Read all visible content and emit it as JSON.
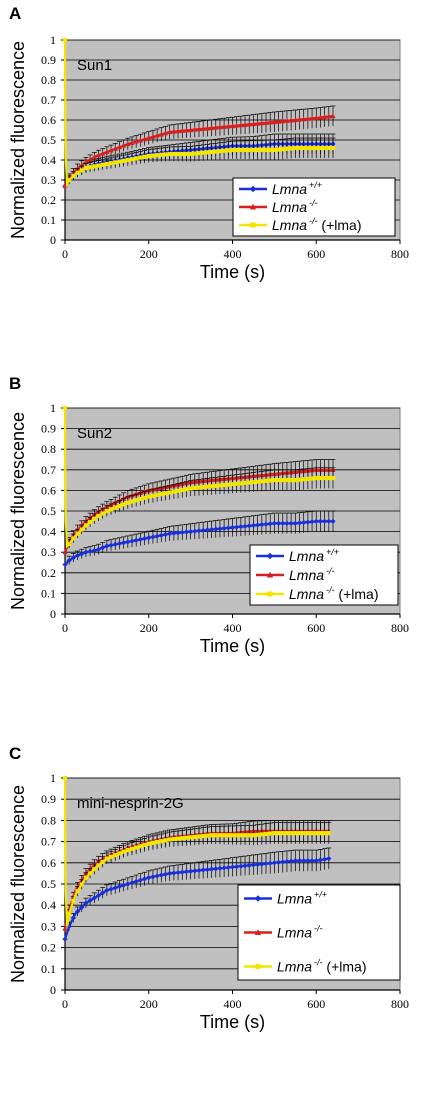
{
  "chart_data": [
    {
      "type": "line",
      "panel_letter": "A",
      "title": "Sun1",
      "xlabel": "Time (s)",
      "ylabel": "Normalized fluorescence",
      "xlim": [
        0,
        800
      ],
      "ylim": [
        0,
        1
      ],
      "x_ticks": [
        "0",
        "200",
        "400",
        "600",
        "800"
      ],
      "y_ticks": [
        "0",
        "0.1",
        "0.2",
        "0.3",
        "0.4",
        "0.5",
        "0.6",
        "0.7",
        "0.8",
        "0.9",
        "1"
      ],
      "grid": true,
      "error_bars": true,
      "legend_position": "bottom-right",
      "series": [
        {
          "name": "Lmna +/+",
          "gene": "Lmna",
          "superscript": "+/+",
          "suffix": "",
          "color": "#1a2fd6",
          "marker": "diamond",
          "x": [
            0,
            10,
            25,
            50,
            75,
            100,
            150,
            200,
            250,
            300,
            350,
            400,
            450,
            500,
            550,
            600,
            640
          ],
          "y": [
            0.27,
            0.3,
            0.33,
            0.36,
            0.38,
            0.39,
            0.41,
            0.43,
            0.44,
            0.45,
            0.46,
            0.47,
            0.47,
            0.48,
            0.48,
            0.48,
            0.48
          ]
        },
        {
          "name": "Lmna -/-",
          "gene": "Lmna",
          "superscript": "-/-",
          "suffix": "",
          "color": "#d42020",
          "marker": "triangle",
          "x": [
            0,
            10,
            25,
            50,
            75,
            100,
            150,
            200,
            250,
            300,
            350,
            400,
            450,
            500,
            550,
            600,
            640
          ],
          "y": [
            0.27,
            0.31,
            0.35,
            0.39,
            0.42,
            0.44,
            0.48,
            0.51,
            0.54,
            0.55,
            0.56,
            0.57,
            0.58,
            0.59,
            0.6,
            0.61,
            0.62
          ]
        },
        {
          "name": "Lmna -/- (+lma)",
          "gene": "Lmna",
          "superscript": "-/-",
          "suffix": " (+lma)",
          "color": "#f2e600",
          "marker": "square",
          "x": [
            0,
            1,
            2,
            5,
            10,
            25,
            50,
            75,
            100,
            150,
            200,
            250,
            300,
            350,
            400,
            450,
            500,
            550,
            600,
            640
          ],
          "y": [
            1.0,
            0.6,
            0.4,
            0.28,
            0.3,
            0.33,
            0.36,
            0.37,
            0.38,
            0.4,
            0.42,
            0.43,
            0.43,
            0.44,
            0.45,
            0.45,
            0.45,
            0.46,
            0.46,
            0.46
          ]
        }
      ]
    },
    {
      "type": "line",
      "panel_letter": "B",
      "title": "Sun2",
      "xlabel": "Time (s)",
      "ylabel": "Normalized fluorescence",
      "xlim": [
        0,
        800
      ],
      "ylim": [
        0,
        1
      ],
      "x_ticks": [
        "0",
        "200",
        "400",
        "600",
        "800"
      ],
      "y_ticks": [
        "0",
        "0.1",
        "0.2",
        "0.3",
        "0.4",
        "0.5",
        "0.6",
        "0.7",
        "0.8",
        "0.9",
        "1"
      ],
      "grid": true,
      "error_bars": true,
      "legend_position": "bottom-right",
      "series": [
        {
          "name": "Lmna +/+",
          "gene": "Lmna",
          "superscript": "+/+",
          "suffix": "",
          "color": "#1a2fd6",
          "marker": "diamond",
          "x": [
            0,
            10,
            25,
            50,
            75,
            100,
            150,
            200,
            250,
            300,
            350,
            400,
            450,
            500,
            550,
            600,
            640
          ],
          "y": [
            0.24,
            0.26,
            0.28,
            0.3,
            0.31,
            0.33,
            0.35,
            0.37,
            0.39,
            0.4,
            0.41,
            0.42,
            0.43,
            0.44,
            0.44,
            0.45,
            0.45
          ]
        },
        {
          "name": "Lmna -/-",
          "gene": "Lmna",
          "superscript": "-/-",
          "suffix": "",
          "color": "#d42020",
          "marker": "triangle",
          "x": [
            0,
            10,
            25,
            50,
            75,
            100,
            150,
            200,
            250,
            300,
            350,
            400,
            450,
            500,
            550,
            600,
            640
          ],
          "y": [
            0.3,
            0.35,
            0.4,
            0.45,
            0.49,
            0.52,
            0.57,
            0.6,
            0.62,
            0.64,
            0.65,
            0.66,
            0.67,
            0.68,
            0.69,
            0.7,
            0.7
          ]
        },
        {
          "name": "Lmna -/- (+lma)",
          "gene": "Lmna",
          "superscript": "-/-",
          "suffix": " (+lma)",
          "color": "#f2e600",
          "marker": "square",
          "x": [
            0,
            1,
            2,
            5,
            10,
            25,
            50,
            75,
            100,
            150,
            200,
            250,
            300,
            350,
            400,
            450,
            500,
            550,
            600,
            640
          ],
          "y": [
            1.0,
            0.6,
            0.45,
            0.33,
            0.34,
            0.38,
            0.43,
            0.47,
            0.5,
            0.54,
            0.57,
            0.59,
            0.61,
            0.62,
            0.63,
            0.64,
            0.65,
            0.65,
            0.66,
            0.66
          ]
        }
      ]
    },
    {
      "type": "line",
      "panel_letter": "C",
      "title": "mini-nesprin-2G",
      "xlabel": "Time (s)",
      "ylabel": "Normalized fluorescence",
      "xlim": [
        0,
        800
      ],
      "ylim": [
        0,
        1
      ],
      "x_ticks": [
        "0",
        "200",
        "400",
        "600",
        "800"
      ],
      "y_ticks": [
        "0",
        "0.1",
        "0.2",
        "0.3",
        "0.4",
        "0.5",
        "0.6",
        "0.7",
        "0.8",
        "0.9",
        "1"
      ],
      "grid": true,
      "error_bars": true,
      "legend_position": "bottom-right",
      "series": [
        {
          "name": "Lmna +/+",
          "gene": "Lmna",
          "superscript": "+/+",
          "suffix": "",
          "color": "#1a2fd6",
          "marker": "diamond",
          "x": [
            0,
            10,
            25,
            50,
            75,
            100,
            150,
            200,
            250,
            300,
            350,
            400,
            450,
            500,
            550,
            600,
            630
          ],
          "y": [
            0.24,
            0.3,
            0.36,
            0.41,
            0.44,
            0.47,
            0.5,
            0.53,
            0.55,
            0.56,
            0.57,
            0.58,
            0.59,
            0.6,
            0.61,
            0.61,
            0.62
          ]
        },
        {
          "name": "Lmna -/-",
          "gene": "Lmna",
          "superscript": "-/-",
          "suffix": "",
          "color": "#d42020",
          "marker": "triangle",
          "x": [
            0,
            10,
            25,
            50,
            75,
            100,
            150,
            200,
            250,
            300,
            350,
            400,
            450,
            500,
            550,
            600,
            630
          ],
          "y": [
            0.29,
            0.38,
            0.47,
            0.55,
            0.6,
            0.63,
            0.67,
            0.7,
            0.72,
            0.73,
            0.74,
            0.74,
            0.75,
            0.75,
            0.75,
            0.75,
            0.75
          ]
        },
        {
          "name": "Lmna -/- (+lma)",
          "gene": "Lmna",
          "superscript": "-/-",
          "suffix": " (+lma)",
          "color": "#f2e600",
          "marker": "square",
          "x": [
            0,
            1,
            2,
            5,
            10,
            25,
            50,
            75,
            100,
            150,
            200,
            250,
            300,
            350,
            400,
            450,
            500,
            550,
            600,
            630
          ],
          "y": [
            1.0,
            0.6,
            0.45,
            0.3,
            0.36,
            0.45,
            0.53,
            0.58,
            0.62,
            0.66,
            0.69,
            0.71,
            0.72,
            0.73,
            0.73,
            0.73,
            0.74,
            0.74,
            0.74,
            0.74
          ]
        }
      ]
    }
  ]
}
